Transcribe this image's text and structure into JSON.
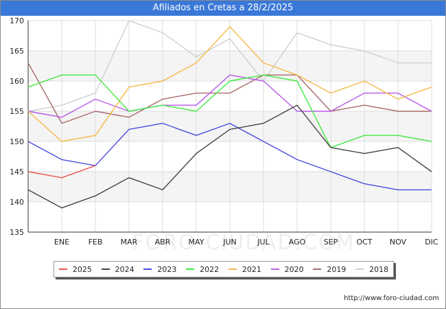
{
  "title": "Afiliados en Cretas a 28/2/2025",
  "source": "http://www.foro-ciudad.com",
  "watermark": "FORO-CIUDAD.COM",
  "chart_data": {
    "type": "line",
    "categories": [
      "",
      "ENE",
      "FEB",
      "MAR",
      "ABR",
      "MAY",
      "JUN",
      "JUL",
      "AGO",
      "SEP",
      "OCT",
      "NOV",
      "DIC"
    ],
    "ylim": [
      135,
      170
    ],
    "yticks": [
      135,
      140,
      145,
      150,
      155,
      160,
      165,
      170
    ],
    "grid": true,
    "legend_position": "bottom",
    "series": [
      {
        "name": "2025",
        "color": "#e8514f",
        "values": [
          145,
          144,
          146,
          null,
          null,
          null,
          null,
          null,
          null,
          null,
          null,
          null,
          null
        ]
      },
      {
        "name": "2024",
        "color": "#444444",
        "values": [
          142,
          139,
          141,
          144,
          142,
          148,
          152,
          153,
          156,
          149,
          148,
          149,
          145
        ]
      },
      {
        "name": "2023",
        "color": "#4a4ae0",
        "values": [
          150,
          147,
          146,
          152,
          153,
          151,
          153,
          150,
          147,
          145,
          143,
          142,
          142
        ]
      },
      {
        "name": "2022",
        "color": "#43ea43",
        "values": [
          159,
          161,
          161,
          155,
          156,
          155,
          160,
          161,
          160,
          149,
          151,
          151,
          150
        ]
      },
      {
        "name": "2021",
        "color": "#f7b84a",
        "values": [
          155,
          150,
          151,
          159,
          160,
          163,
          169,
          163,
          161,
          158,
          160,
          157,
          159
        ]
      },
      {
        "name": "2020",
        "color": "#b65ae6",
        "values": [
          155,
          154,
          157,
          155,
          156,
          156,
          161,
          160,
          155,
          155,
          158,
          158,
          155
        ]
      },
      {
        "name": "2019",
        "color": "#a86a6a",
        "values": [
          163,
          153,
          155,
          154,
          157,
          158,
          158,
          161,
          161,
          155,
          156,
          155,
          155
        ]
      },
      {
        "name": "2018",
        "color": "#cfcfcf",
        "values": [
          155,
          156,
          158,
          170,
          168,
          164,
          167,
          160,
          168,
          166,
          165,
          163,
          163
        ]
      }
    ]
  }
}
